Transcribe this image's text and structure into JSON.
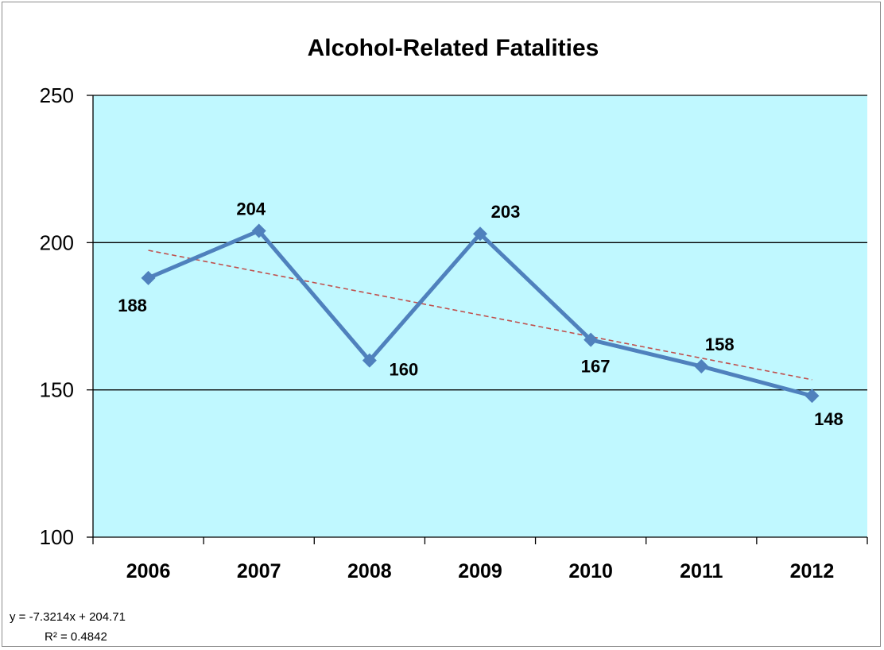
{
  "chart_data": {
    "type": "line",
    "title": "Alcohol-Related Fatalities",
    "xlabel": "",
    "ylabel": "",
    "categories": [
      "2006",
      "2007",
      "2008",
      "2009",
      "2010",
      "2011",
      "2012"
    ],
    "series": [
      {
        "values": [
          188,
          204,
          160,
          203,
          167,
          158,
          148
        ],
        "color": "#4f81bd"
      }
    ],
    "data_labels": [
      "188",
      "204",
      "160",
      "203",
      "167",
      "158",
      "148"
    ],
    "ylim": [
      100,
      250
    ],
    "yticks": [
      "100",
      "150",
      "200",
      "250"
    ],
    "grid": "horizontal",
    "plot_background": "#c0f8ff",
    "trendline": {
      "type": "linear",
      "color": "#c0504d",
      "slope": -7.3214,
      "intercept": 204.71,
      "equation": "y = -7.3214x + 204.71",
      "r_squared": "R² = 0.4842"
    }
  }
}
